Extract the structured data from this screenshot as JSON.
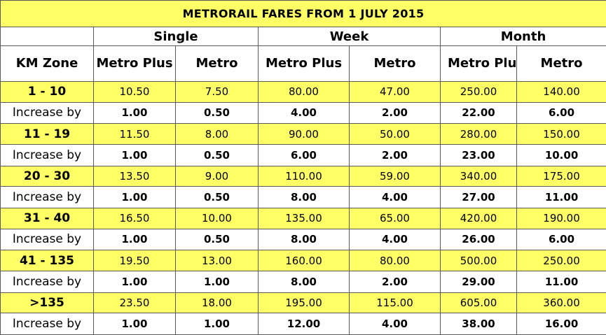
{
  "title": "METRORAIL FARES FROM 1 JULY 2015",
  "groups": {
    "single": "Single",
    "week": "Week",
    "month": "Month"
  },
  "columns": {
    "zone": "KM Zone",
    "single_plus": "Metro Plus",
    "single_metro": "Metro",
    "week_plus": "Metro Plus",
    "week_metro": "Metro",
    "month_plus": "Metro Plus",
    "month_metro": "Metro"
  },
  "rows": [
    {
      "zone": "1 - 10",
      "fare": [
        "10.50",
        "7.50",
        "80.00",
        "47.00",
        "250.00",
        "140.00"
      ],
      "inc_label": "Increase by",
      "increase": [
        "1.00",
        "0.50",
        "4.00",
        "2.00",
        "22.00",
        "6.00"
      ]
    },
    {
      "zone": "11 - 19",
      "fare": [
        "11.50",
        "8.00",
        "90.00",
        "50.00",
        "280.00",
        "150.00"
      ],
      "inc_label": "Increase by",
      "increase": [
        "1.00",
        "0.50",
        "6.00",
        "2.00",
        "23.00",
        "10.00"
      ]
    },
    {
      "zone": "20 - 30",
      "fare": [
        "13.50",
        "9.00",
        "110.00",
        "59.00",
        "340.00",
        "175.00"
      ],
      "inc_label": "Increase by",
      "increase": [
        "1.00",
        "0.50",
        "8.00",
        "4.00",
        "27.00",
        "11.00"
      ]
    },
    {
      "zone": "31 - 40",
      "fare": [
        "16.50",
        "10.00",
        "135.00",
        "65.00",
        "420.00",
        "190.00"
      ],
      "inc_label": "Increase by",
      "increase": [
        "1.00",
        "0.50",
        "8.00",
        "4.00",
        "26.00",
        "6.00"
      ]
    },
    {
      "zone": "41 - 135",
      "fare": [
        "19.50",
        "13.00",
        "160.00",
        "80.00",
        "500.00",
        "250.00"
      ],
      "inc_label": "Increase by",
      "increase": [
        "1.00",
        "1.00",
        "8.00",
        "2.00",
        "29.00",
        "11.00"
      ]
    },
    {
      "zone": ">135",
      "fare": [
        "23.50",
        "18.00",
        "195.00",
        "115.00",
        "605.00",
        "360.00"
      ],
      "inc_label": "Increase by",
      "increase": [
        "1.00",
        "1.00",
        "12.00",
        "4.00",
        "38.00",
        "16.00"
      ]
    }
  ]
}
